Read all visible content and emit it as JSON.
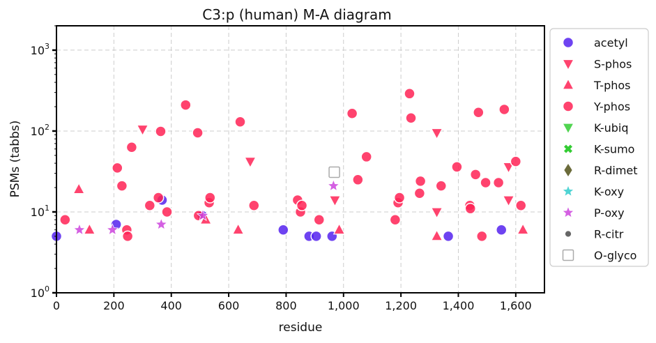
{
  "chart_data": {
    "type": "scatter",
    "title": "C3:p (human) M-A diagram",
    "xlabel": "residue",
    "ylabel": "PSMs (tabbs)",
    "xlim": [
      0,
      1700
    ],
    "ylim": [
      1,
      2000
    ],
    "yscale": "log",
    "grid": true,
    "legend_position": "outside-right",
    "x_ticks": [
      0,
      200,
      400,
      600,
      800,
      1000,
      1200,
      1400,
      1600
    ],
    "x_tick_labels": [
      "0",
      "200",
      "400",
      "600",
      "800",
      "1,000",
      "1,200",
      "1,400",
      "1,600"
    ],
    "y_ticks": [
      1,
      10,
      100,
      1000
    ],
    "y_tick_labels": [
      {
        "base": "10",
        "exp": "0"
      },
      {
        "base": "10",
        "exp": "1"
      },
      {
        "base": "10",
        "exp": "2"
      },
      {
        "base": "10",
        "exp": "3"
      }
    ],
    "series": [
      {
        "name": "acetyl",
        "marker": "circle",
        "color": "#5522ee",
        "points": [
          [
            0,
            5
          ],
          [
            208,
            7
          ],
          [
            368,
            14
          ],
          [
            508,
            9
          ],
          [
            790,
            6
          ],
          [
            880,
            5
          ],
          [
            905,
            5
          ],
          [
            960,
            5
          ],
          [
            1365,
            5
          ],
          [
            1550,
            6
          ]
        ]
      },
      {
        "name": "S-phos",
        "marker": "triangle-down",
        "color": "#ff2255",
        "points": [
          [
            300,
            105
          ],
          [
            675,
            42
          ],
          [
            970,
            14
          ],
          [
            1325,
            95
          ],
          [
            1325,
            10
          ],
          [
            1575,
            36
          ],
          [
            1575,
            14
          ]
        ]
      },
      {
        "name": "T-phos",
        "marker": "triangle-up",
        "color": "#ff2255",
        "points": [
          [
            78,
            19
          ],
          [
            115,
            6
          ],
          [
            520,
            8
          ],
          [
            633,
            6
          ],
          [
            985,
            6
          ],
          [
            1325,
            5
          ],
          [
            1625,
            6
          ]
        ]
      },
      {
        "name": "Y-phos",
        "marker": "circle",
        "color": "#ff2255",
        "points": [
          [
            30,
            8
          ],
          [
            212,
            35
          ],
          [
            228,
            21
          ],
          [
            245,
            6
          ],
          [
            248,
            5
          ],
          [
            262,
            63
          ],
          [
            325,
            12
          ],
          [
            355,
            15
          ],
          [
            363,
            99
          ],
          [
            385,
            10
          ],
          [
            450,
            210
          ],
          [
            492,
            95
          ],
          [
            495,
            9
          ],
          [
            532,
            13
          ],
          [
            535,
            15
          ],
          [
            640,
            130
          ],
          [
            688,
            12
          ],
          [
            840,
            14
          ],
          [
            850,
            10
          ],
          [
            855,
            12
          ],
          [
            915,
            8
          ],
          [
            1030,
            165
          ],
          [
            1050,
            25
          ],
          [
            1080,
            48
          ],
          [
            1180,
            8
          ],
          [
            1190,
            13
          ],
          [
            1195,
            15
          ],
          [
            1230,
            290
          ],
          [
            1235,
            145
          ],
          [
            1265,
            17
          ],
          [
            1268,
            24
          ],
          [
            1340,
            21
          ],
          [
            1395,
            36
          ],
          [
            1440,
            12
          ],
          [
            1442,
            11
          ],
          [
            1460,
            29
          ],
          [
            1470,
            170
          ],
          [
            1482,
            5
          ],
          [
            1495,
            23
          ],
          [
            1540,
            23
          ],
          [
            1560,
            185
          ],
          [
            1600,
            42
          ],
          [
            1618,
            12
          ]
        ]
      },
      {
        "name": "K-ubiq",
        "marker": "triangle-down",
        "color": "#33cc33",
        "points": []
      },
      {
        "name": "K-sumo",
        "marker": "x",
        "color": "#33cc33",
        "points": []
      },
      {
        "name": "R-dimet",
        "marker": "diamond",
        "color": "#6b6b3a",
        "points": []
      },
      {
        "name": "K-oxy",
        "marker": "star",
        "color": "#33cccc",
        "points": []
      },
      {
        "name": "P-oxy",
        "marker": "star",
        "color": "#cc44dd",
        "points": [
          [
            80,
            6
          ],
          [
            195,
            6
          ],
          [
            365,
            7
          ],
          [
            510,
            9
          ],
          [
            965,
            21
          ]
        ]
      },
      {
        "name": "R-citr",
        "marker": "small-circle",
        "color": "#666666",
        "points": []
      },
      {
        "name": "O-glyco",
        "marker": "square-open",
        "color": "#aaaaaa",
        "points": [
          [
            968,
            31
          ]
        ]
      }
    ]
  }
}
